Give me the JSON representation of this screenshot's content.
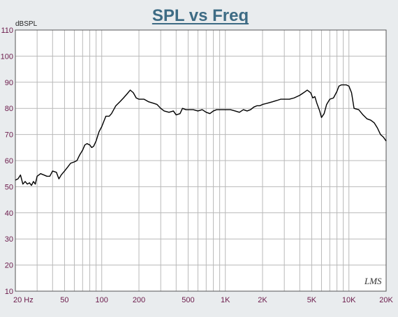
{
  "chart_data": {
    "type": "line",
    "title": "SPL vs Freq",
    "ylabel": "dBSPL",
    "xlabel": "",
    "x_scale": "log",
    "xlim": [
      20,
      20000
    ],
    "ylim": [
      10,
      110
    ],
    "y_ticks": [
      10,
      20,
      30,
      40,
      50,
      60,
      70,
      80,
      90,
      100,
      110
    ],
    "x_ticks": [
      {
        "value": 20,
        "label": "20  Hz"
      },
      {
        "value": 50,
        "label": "50"
      },
      {
        "value": 100,
        "label": "100"
      },
      {
        "value": 200,
        "label": "200"
      },
      {
        "value": 500,
        "label": "500"
      },
      {
        "value": 1000,
        "label": "1K"
      },
      {
        "value": 2000,
        "label": "2K"
      },
      {
        "value": 5000,
        "label": "5K"
      },
      {
        "value": 10000,
        "label": "10K"
      },
      {
        "value": 20000,
        "label": "20K"
      }
    ],
    "grid": true,
    "watermark": "LMS",
    "series": [
      {
        "color": "#000000",
        "points": [
          [
            20,
            52.5
          ],
          [
            21,
            53
          ],
          [
            22,
            54.5
          ],
          [
            23,
            51
          ],
          [
            24,
            52
          ],
          [
            25,
            51
          ],
          [
            26,
            51.5
          ],
          [
            27,
            50.5
          ],
          [
            28,
            52
          ],
          [
            29,
            51
          ],
          [
            30,
            54
          ],
          [
            32,
            55
          ],
          [
            34,
            54.5
          ],
          [
            36,
            54
          ],
          [
            38,
            54
          ],
          [
            40,
            56
          ],
          [
            43,
            55.5
          ],
          [
            45,
            53
          ],
          [
            47,
            54.5
          ],
          [
            50,
            56
          ],
          [
            53,
            57.5
          ],
          [
            56,
            59
          ],
          [
            60,
            59.5
          ],
          [
            63,
            60
          ],
          [
            66,
            62
          ],
          [
            70,
            64
          ],
          [
            73,
            66
          ],
          [
            76,
            66.5
          ],
          [
            80,
            66
          ],
          [
            83,
            65
          ],
          [
            86,
            65.5
          ],
          [
            90,
            67.5
          ],
          [
            95,
            71
          ],
          [
            100,
            73
          ],
          [
            108,
            77
          ],
          [
            115,
            77
          ],
          [
            120,
            78
          ],
          [
            130,
            81
          ],
          [
            140,
            82.5
          ],
          [
            150,
            84
          ],
          [
            160,
            85.5
          ],
          [
            170,
            87
          ],
          [
            180,
            86
          ],
          [
            190,
            84
          ],
          [
            200,
            83.5
          ],
          [
            210,
            83.5
          ],
          [
            220,
            83.5
          ],
          [
            240,
            82.5
          ],
          [
            260,
            82
          ],
          [
            280,
            81.5
          ],
          [
            300,
            80
          ],
          [
            320,
            79
          ],
          [
            350,
            78.5
          ],
          [
            380,
            79
          ],
          [
            400,
            77.5
          ],
          [
            430,
            78
          ],
          [
            450,
            80
          ],
          [
            480,
            79.5
          ],
          [
            500,
            79.5
          ],
          [
            550,
            79.5
          ],
          [
            600,
            79
          ],
          [
            650,
            79.5
          ],
          [
            700,
            78.5
          ],
          [
            750,
            78
          ],
          [
            800,
            79
          ],
          [
            850,
            79.5
          ],
          [
            900,
            79.5
          ],
          [
            1000,
            79.5
          ],
          [
            1100,
            79.5
          ],
          [
            1200,
            79
          ],
          [
            1300,
            78.5
          ],
          [
            1400,
            79.5
          ],
          [
            1500,
            79
          ],
          [
            1600,
            79.5
          ],
          [
            1700,
            80.5
          ],
          [
            1800,
            81
          ],
          [
            1900,
            81
          ],
          [
            2000,
            81.5
          ],
          [
            2200,
            82
          ],
          [
            2400,
            82.5
          ],
          [
            2600,
            83
          ],
          [
            2800,
            83.5
          ],
          [
            3000,
            83.5
          ],
          [
            3300,
            83.5
          ],
          [
            3600,
            84
          ],
          [
            4000,
            85
          ],
          [
            4300,
            86
          ],
          [
            4600,
            87
          ],
          [
            4900,
            86
          ],
          [
            5100,
            84
          ],
          [
            5300,
            84.5
          ],
          [
            5500,
            82
          ],
          [
            5800,
            79
          ],
          [
            6000,
            76.5
          ],
          [
            6300,
            78
          ],
          [
            6600,
            81.5
          ],
          [
            7000,
            83.5
          ],
          [
            7500,
            84
          ],
          [
            8000,
            86.5
          ],
          [
            8300,
            88.5
          ],
          [
            8700,
            89
          ],
          [
            9000,
            89
          ],
          [
            9500,
            89
          ],
          [
            10000,
            88.5
          ],
          [
            10500,
            86
          ],
          [
            11000,
            80
          ],
          [
            12000,
            79.5
          ],
          [
            13000,
            77.5
          ],
          [
            14000,
            76
          ],
          [
            15000,
            75.5
          ],
          [
            16000,
            74.5
          ],
          [
            17000,
            72.5
          ],
          [
            18000,
            70
          ],
          [
            19000,
            69
          ],
          [
            20000,
            67.5
          ]
        ]
      }
    ]
  }
}
